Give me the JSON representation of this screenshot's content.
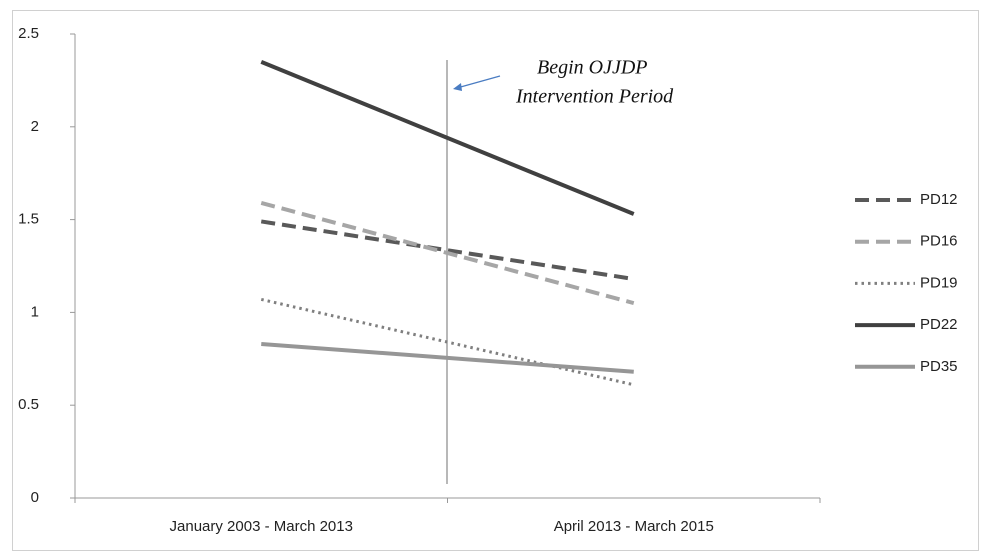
{
  "chart_data": {
    "type": "line",
    "categories": [
      "January 2003 - March 2013",
      "April 2013 - March 2015"
    ],
    "series": [
      {
        "name": "PD12",
        "color": "#595959",
        "line_style": "dashed",
        "values": [
          1.49,
          1.18
        ]
      },
      {
        "name": "PD16",
        "color": "#a6a6a6",
        "line_style": "dashed",
        "values": [
          1.59,
          1.05
        ]
      },
      {
        "name": "PD19",
        "color": "#7f7f7f",
        "line_style": "dotted",
        "values": [
          1.07,
          0.61
        ]
      },
      {
        "name": "PD22",
        "color": "#404040",
        "line_style": "solid",
        "values": [
          2.35,
          1.53
        ]
      },
      {
        "name": "PD35",
        "color": "#969696",
        "line_style": "solid",
        "values": [
          0.83,
          0.68
        ]
      }
    ],
    "ylim": [
      0,
      2.5
    ],
    "yticks": [
      0,
      0.5,
      1,
      1.5,
      2,
      2.5
    ],
    "annotation": [
      "Begin OJJDP",
      "Intervention Period"
    ],
    "legend": "right"
  }
}
